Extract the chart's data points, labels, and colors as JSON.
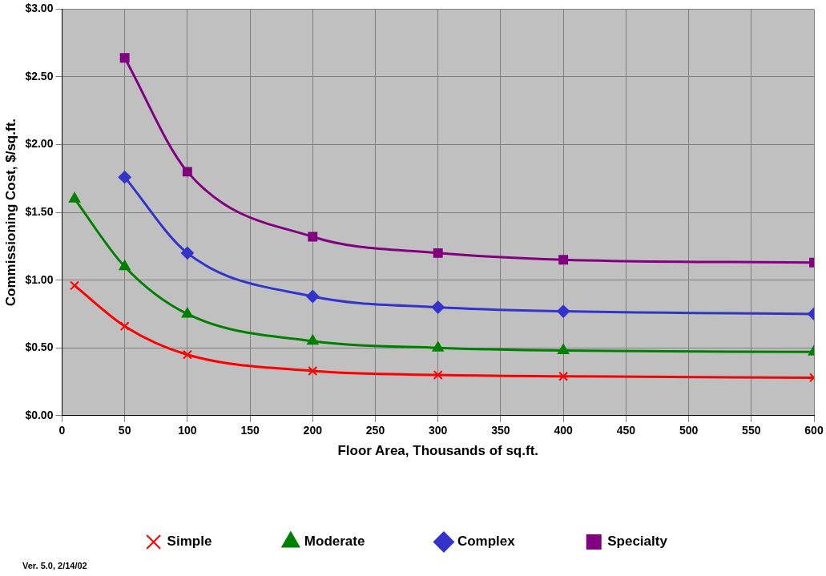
{
  "chart_data": {
    "type": "line",
    "xlabel": "Floor Area, Thousands of sq.ft.",
    "ylabel": "Commissioning Cost, $/sq.ft.",
    "xlim": [
      0,
      600
    ],
    "xticks": [
      0,
      50,
      100,
      150,
      200,
      250,
      300,
      350,
      400,
      450,
      500,
      550,
      600
    ],
    "ylim": [
      0,
      3
    ],
    "yticks": [
      {
        "value": 0,
        "label": "$0.00"
      },
      {
        "value": 0.5,
        "label": "$0.50"
      },
      {
        "value": 1,
        "label": "$1.00"
      },
      {
        "value": 1.5,
        "label": "$1.50"
      },
      {
        "value": 2,
        "label": "$2.00"
      },
      {
        "value": 2.5,
        "label": "$2.50"
      },
      {
        "value": 3,
        "label": "$3.00"
      }
    ],
    "grid": true,
    "legend": "bottom",
    "series": [
      {
        "name": "Simple",
        "color": "#ff0000",
        "marker": "cross",
        "x": [
          10,
          50,
          100,
          200,
          300,
          400,
          600
        ],
        "values": [
          0.96,
          0.66,
          0.45,
          0.33,
          0.3,
          0.29,
          0.28
        ]
      },
      {
        "name": "Moderate",
        "color": "#008000",
        "marker": "triangle",
        "x": [
          10,
          50,
          100,
          200,
          300,
          400,
          600
        ],
        "values": [
          1.6,
          1.1,
          0.75,
          0.55,
          0.5,
          0.48,
          0.47
        ]
      },
      {
        "name": "Complex",
        "color": "#3333cc",
        "marker": "diamond",
        "x": [
          50,
          100,
          200,
          300,
          400,
          600
        ],
        "values": [
          1.76,
          1.2,
          0.88,
          0.8,
          0.77,
          0.75
        ]
      },
      {
        "name": "Specialty",
        "color": "#800080",
        "marker": "square",
        "x": [
          50,
          100,
          200,
          300,
          400,
          600
        ],
        "values": [
          2.64,
          1.8,
          1.32,
          1.2,
          1.15,
          1.13
        ]
      }
    ],
    "annotations": [
      "Ver. 5.0, 2/14/02"
    ]
  }
}
